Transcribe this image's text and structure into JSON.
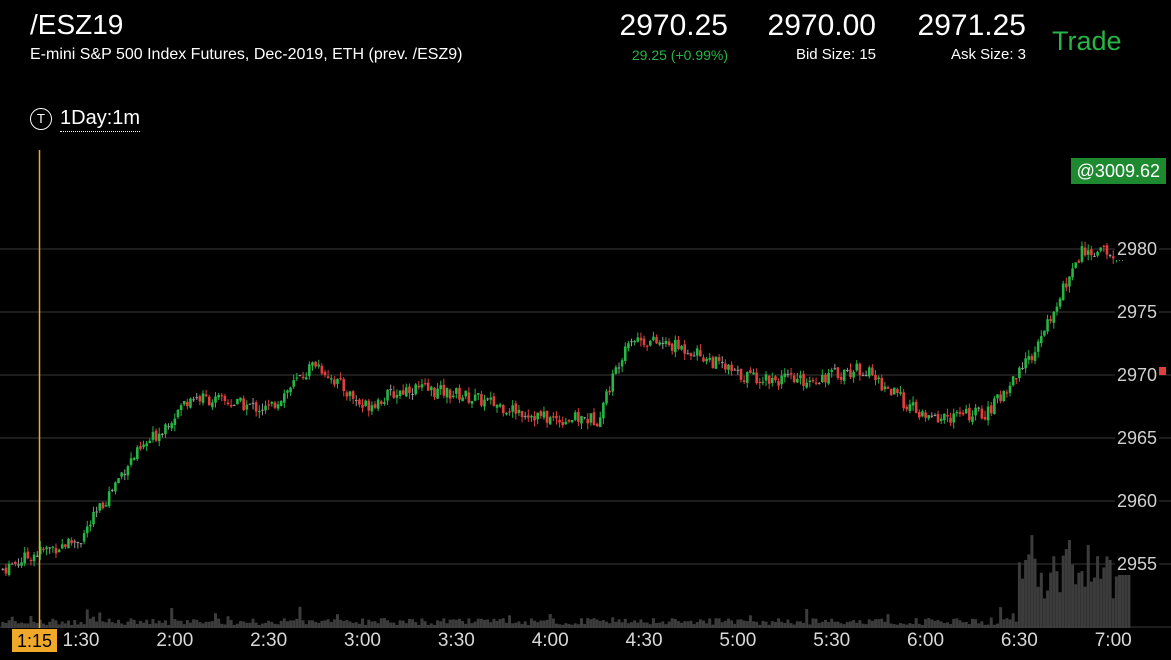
{
  "header": {
    "symbol": "/ESZ19",
    "description": "E-mini S&P 500 Index Futures, Dec-2019, ETH (prev. /ESZ9)",
    "last_price": "2970.25",
    "change": "29.25 (+0.99%)",
    "bid_price": "2970.00",
    "bid_size": "Bid Size: 15",
    "ask_price": "2971.25",
    "ask_size": "Ask Size: 3",
    "trade_label": "Trade",
    "change_color": "#27b545"
  },
  "timeframe": {
    "icon": "T",
    "label": "1Day:1m"
  },
  "badge": {
    "high_price": "@3009.62"
  },
  "crosshair": {
    "time_label": "1:15"
  },
  "chart_data": {
    "type": "candlestick",
    "ylim": [
      2950,
      2985
    ],
    "price_ticks": [
      "2980",
      "2975",
      "2970",
      "2965",
      "2960",
      "2955"
    ],
    "x_ticks": [
      "1:30",
      "2:00",
      "2:30",
      "3:00",
      "3:30",
      "4:00",
      "4:30",
      "5:00",
      "5:30",
      "6:00",
      "6:30",
      "7:00"
    ],
    "up_color": "#27b545",
    "down_color": "#e0403c",
    "close_anchors": [
      {
        "t": "1:05",
        "p": 2954.6
      },
      {
        "t": "1:15",
        "p": 2955.8
      },
      {
        "t": "1:30",
        "p": 2957.0
      },
      {
        "t": "1:45",
        "p": 2963.0
      },
      {
        "t": "1:55",
        "p": 2965.5
      },
      {
        "t": "2:05",
        "p": 2968.3
      },
      {
        "t": "2:30",
        "p": 2967.3
      },
      {
        "t": "2:45",
        "p": 2971.0
      },
      {
        "t": "3:00",
        "p": 2967.5
      },
      {
        "t": "3:15",
        "p": 2969.0
      },
      {
        "t": "3:30",
        "p": 2968.5
      },
      {
        "t": "3:45",
        "p": 2967.5
      },
      {
        "t": "4:00",
        "p": 2966.5
      },
      {
        "t": "4:15",
        "p": 2966.5
      },
      {
        "t": "4:25",
        "p": 2973.0
      },
      {
        "t": "4:45",
        "p": 2972.0
      },
      {
        "t": "5:00",
        "p": 2970.0
      },
      {
        "t": "5:20",
        "p": 2969.5
      },
      {
        "t": "5:40",
        "p": 2970.5
      },
      {
        "t": "6:00",
        "p": 2966.5
      },
      {
        "t": "6:20",
        "p": 2967.0
      },
      {
        "t": "6:35",
        "p": 2972.0
      },
      {
        "t": "6:50",
        "p": 2980.0
      },
      {
        "t": "7:05",
        "p": 2979.5
      }
    ]
  }
}
